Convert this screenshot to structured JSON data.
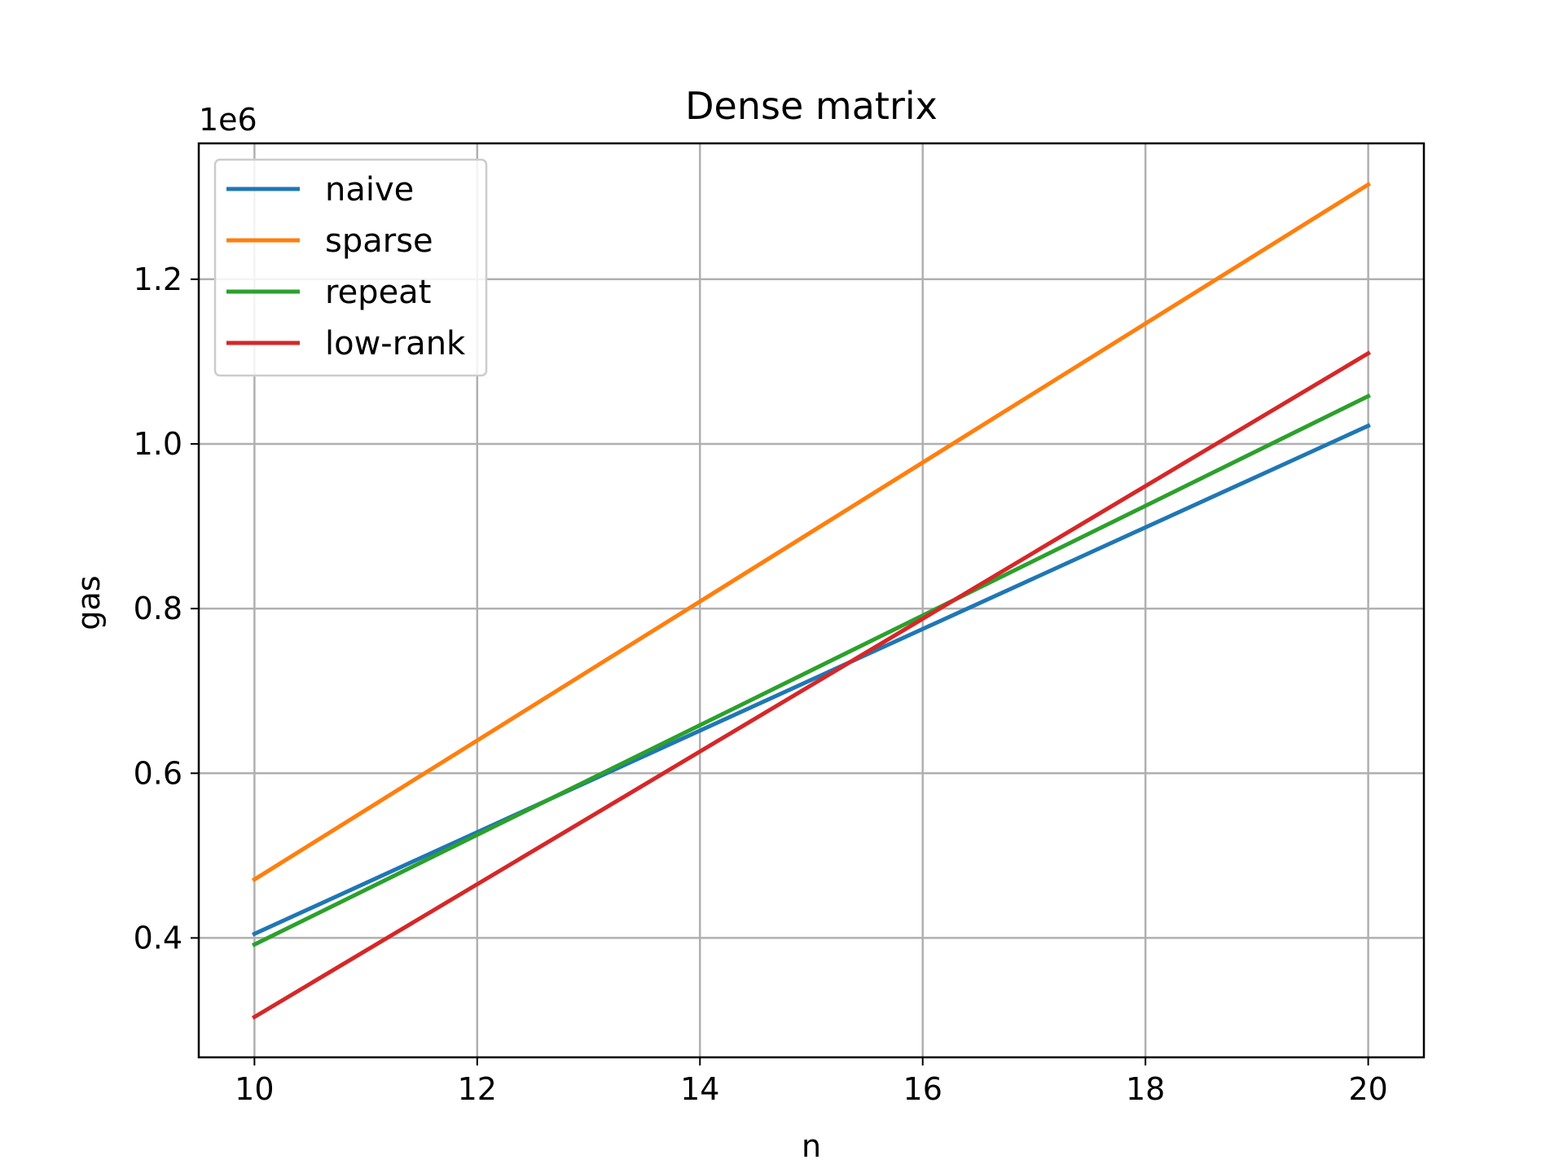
{
  "chart_data": {
    "type": "line",
    "title": "Dense matrix",
    "xlabel": "n",
    "ylabel": "gas",
    "y_offset_label": "1e6",
    "x": [
      10,
      20
    ],
    "xlim": [
      9.5,
      20.5
    ],
    "ylim": [
      0.255,
      1.365
    ],
    "x_ticks": [
      10,
      12,
      14,
      16,
      18,
      20
    ],
    "x_tick_labels": [
      "10",
      "12",
      "14",
      "16",
      "18",
      "20"
    ],
    "y_ticks": [
      0.4,
      0.6,
      0.8,
      1.0,
      1.2
    ],
    "y_tick_labels": [
      "0.4",
      "0.6",
      "0.8",
      "1.0",
      "1.2"
    ],
    "grid": true,
    "legend_position": "top-left",
    "series": [
      {
        "name": "naive",
        "color": "#1f77b4",
        "values": [
          0.405,
          1.022
        ]
      },
      {
        "name": "sparse",
        "color": "#ff7f0e",
        "values": [
          0.471,
          1.315
        ]
      },
      {
        "name": "repeat",
        "color": "#2ca02c",
        "values": [
          0.392,
          1.058
        ]
      },
      {
        "name": "low-rank",
        "color": "#d62728",
        "values": [
          0.304,
          1.11
        ]
      }
    ]
  }
}
